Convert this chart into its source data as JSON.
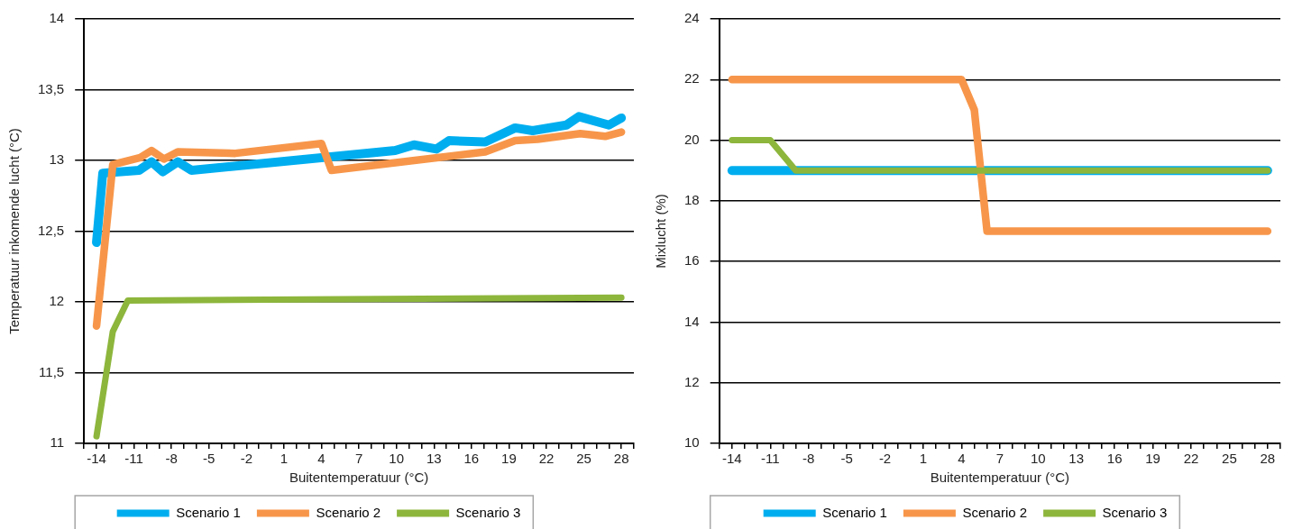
{
  "chart_data": [
    {
      "type": "line",
      "xlabel": "Buitentemperatuur (°C)",
      "ylabel": "Temperatuur inkomende lucht (°C)",
      "series": [
        {
          "name": "Scenario 1",
          "color": "#00aeef",
          "x": [
            -14,
            -13.5,
            -10.6,
            -9.6,
            -8.7,
            -7.5,
            -6.4,
            9.9,
            11.4,
            13.2,
            14.2,
            17.1,
            19.5,
            20.9,
            23.6,
            24.6,
            27,
            28
          ],
          "values": [
            12.42,
            12.91,
            12.93,
            12.99,
            12.92,
            12.99,
            12.93,
            13.07,
            13.11,
            13.08,
            13.14,
            13.13,
            13.23,
            13.21,
            13.25,
            13.31,
            13.25,
            13.3
          ]
        },
        {
          "name": "Scenario 2",
          "color": "#f7964a",
          "x": [
            -14,
            -12.7,
            -10.5,
            -9.6,
            -8.6,
            -7.5,
            -2.9,
            4,
            4.8,
            17.1,
            19.5,
            21.3,
            24.7,
            26.7,
            28
          ],
          "values": [
            11.83,
            12.97,
            13.02,
            13.07,
            13.01,
            13.06,
            13.05,
            13.12,
            12.93,
            13.06,
            13.14,
            13.15,
            13.19,
            13.17,
            13.2
          ]
        },
        {
          "name": "Scenario 3",
          "color": "#8db63c",
          "x": [
            -14,
            -12.7,
            -11.5,
            28
          ],
          "values": [
            11.05,
            11.79,
            12.01,
            12.03
          ]
        }
      ],
      "xlim": [
        -15,
        29
      ],
      "xticks": [
        {
          "value": -15,
          "label": null
        },
        -14,
        {
          "value": -13,
          "label": null
        },
        {
          "value": -12,
          "label": null
        },
        -11,
        {
          "value": -10,
          "label": null
        },
        {
          "value": -9,
          "label": null
        },
        -8,
        {
          "value": -7,
          "label": null
        },
        {
          "value": -6,
          "label": null
        },
        -5,
        {
          "value": -4,
          "label": null
        },
        {
          "value": -3,
          "label": null
        },
        -2,
        {
          "value": -1,
          "label": null
        },
        {
          "value": 0,
          "label": null
        },
        1,
        {
          "value": 2,
          "label": null
        },
        {
          "value": 3,
          "label": null
        },
        4,
        {
          "value": 5,
          "label": null
        },
        {
          "value": 6,
          "label": null
        },
        7,
        {
          "value": 8,
          "label": null
        },
        {
          "value": 9,
          "label": null
        },
        10,
        {
          "value": 11,
          "label": null
        },
        {
          "value": 12,
          "label": null
        },
        13,
        {
          "value": 14,
          "label": null
        },
        {
          "value": 15,
          "label": null
        },
        16,
        {
          "value": 17,
          "label": null
        },
        {
          "value": 18,
          "label": null
        },
        19,
        {
          "value": 20,
          "label": null
        },
        {
          "value": 21,
          "label": null
        },
        22,
        {
          "value": 23,
          "label": null
        },
        {
          "value": 24,
          "label": null
        },
        25,
        {
          "value": 26,
          "label": null
        },
        {
          "value": 27,
          "label": null
        },
        28,
        {
          "value": 29,
          "label": null
        }
      ],
      "ylim": [
        11,
        14
      ],
      "yticks": [
        11,
        {
          "value": 11.5,
          "label": "11,5"
        },
        12,
        {
          "value": 12.5,
          "label": "12,5"
        },
        13,
        {
          "value": 13.5,
          "label": "13,5"
        },
        14
      ],
      "grid": "y",
      "legend": "bottom",
      "marker": "none",
      "line_style": "solid"
    },
    {
      "type": "line",
      "xlabel": "Buitentemperatuur (°C)",
      "ylabel": "Mixlucht (%)",
      "series": [
        {
          "name": "Scenario 1",
          "color": "#00aeef",
          "x": [
            -14,
            28
          ],
          "values": [
            19,
            19
          ]
        },
        {
          "name": "Scenario 2",
          "color": "#f7964a",
          "x": [
            -14,
            4,
            5,
            6,
            28
          ],
          "values": [
            22,
            22,
            21,
            17,
            17
          ]
        },
        {
          "name": "Scenario 3",
          "color": "#8db63c",
          "x": [
            -14,
            -11,
            -9,
            28
          ],
          "values": [
            20,
            20,
            19,
            19
          ]
        }
      ],
      "xlim": [
        -15,
        29
      ],
      "xticks": [
        {
          "value": -15,
          "label": null
        },
        -14,
        {
          "value": -13,
          "label": null
        },
        {
          "value": -12,
          "label": null
        },
        -11,
        {
          "value": -10,
          "label": null
        },
        {
          "value": -9,
          "label": null
        },
        -8,
        {
          "value": -7,
          "label": null
        },
        {
          "value": -6,
          "label": null
        },
        -5,
        {
          "value": -4,
          "label": null
        },
        {
          "value": -3,
          "label": null
        },
        -2,
        {
          "value": -1,
          "label": null
        },
        {
          "value": 0,
          "label": null
        },
        1,
        {
          "value": 2,
          "label": null
        },
        {
          "value": 3,
          "label": null
        },
        4,
        {
          "value": 5,
          "label": null
        },
        {
          "value": 6,
          "label": null
        },
        7,
        {
          "value": 8,
          "label": null
        },
        {
          "value": 9,
          "label": null
        },
        10,
        {
          "value": 11,
          "label": null
        },
        {
          "value": 12,
          "label": null
        },
        13,
        {
          "value": 14,
          "label": null
        },
        {
          "value": 15,
          "label": null
        },
        16,
        {
          "value": 17,
          "label": null
        },
        {
          "value": 18,
          "label": null
        },
        19,
        {
          "value": 20,
          "label": null
        },
        {
          "value": 21,
          "label": null
        },
        22,
        {
          "value": 23,
          "label": null
        },
        {
          "value": 24,
          "label": null
        },
        25,
        {
          "value": 26,
          "label": null
        },
        {
          "value": 27,
          "label": null
        },
        28,
        {
          "value": 29,
          "label": null
        }
      ],
      "ylim": [
        10,
        24
      ],
      "yticks": [
        10,
        12,
        14,
        16,
        18,
        20,
        22,
        24
      ],
      "grid": "y",
      "legend": "bottom",
      "marker": "none",
      "line_style": "solid"
    }
  ]
}
